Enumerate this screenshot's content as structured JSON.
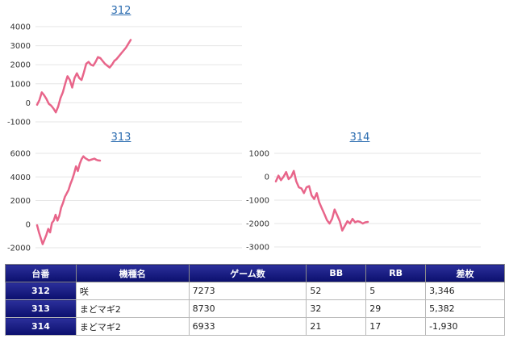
{
  "charts": [
    {
      "title": "312",
      "yticks": [
        "4000",
        "3000",
        "2000",
        "1000",
        "0",
        "-1000"
      ]
    },
    {
      "title": "313",
      "yticks": [
        "6000",
        "4000",
        "2000",
        "0",
        "-2000"
      ]
    },
    {
      "title": "314",
      "yticks": [
        "1000",
        "0",
        "-1000",
        "-2000",
        "-3000"
      ]
    }
  ],
  "chart_data": [
    {
      "type": "line",
      "title": "312",
      "ylim": [
        -1000,
        4000
      ],
      "grid": true,
      "x": [
        0,
        1,
        2,
        3,
        4,
        5,
        6,
        7,
        8,
        9,
        10,
        11,
        12,
        13,
        14,
        15,
        16,
        17,
        18,
        19,
        20,
        21,
        22,
        23,
        24,
        25,
        26,
        27,
        28,
        29,
        30,
        31,
        32,
        33,
        34,
        35,
        36,
        37,
        38,
        39,
        40
      ],
      "values": [
        -100,
        150,
        550,
        400,
        200,
        -50,
        -150,
        -300,
        -500,
        -200,
        250,
        550,
        1000,
        1400,
        1200,
        800,
        1300,
        1550,
        1300,
        1200,
        1600,
        2050,
        2150,
        2000,
        1950,
        2150,
        2400,
        2350,
        2200,
        2050,
        1950,
        1850,
        2000,
        2200,
        2300,
        2450,
        2600,
        2750,
        2900,
        3100,
        3300
      ]
    },
    {
      "type": "line",
      "title": "313",
      "ylim": [
        -2000,
        6000
      ],
      "grid": true,
      "x": [
        0,
        1,
        2,
        3,
        4,
        5,
        6,
        7,
        8,
        9,
        10,
        11,
        12,
        13,
        14,
        15,
        16,
        17,
        18,
        19,
        20,
        21,
        22,
        23,
        24,
        25,
        26,
        27,
        28,
        29,
        30,
        31,
        32,
        33,
        34
      ],
      "values": [
        -100,
        -700,
        -1200,
        -1700,
        -1300,
        -900,
        -400,
        -700,
        100,
        300,
        800,
        300,
        700,
        1400,
        1800,
        2300,
        2600,
        2900,
        3400,
        3800,
        4300,
        4900,
        4500,
        5100,
        5500,
        5750,
        5600,
        5500,
        5400,
        5450,
        5500,
        5550,
        5450,
        5400,
        5382
      ]
    },
    {
      "type": "line",
      "title": "314",
      "ylim": [
        -3000,
        1000
      ],
      "grid": true,
      "x": [
        0,
        1,
        2,
        3,
        4,
        5,
        6,
        7,
        8,
        9,
        10,
        11,
        12,
        13,
        14,
        15,
        16,
        17,
        18,
        19,
        20,
        21,
        22,
        23,
        24,
        25,
        26,
        27,
        28,
        29,
        30,
        31,
        32,
        33,
        34,
        35,
        36
      ],
      "values": [
        -200,
        50,
        -150,
        0,
        200,
        -100,
        0,
        250,
        -200,
        -450,
        -500,
        -700,
        -450,
        -400,
        -800,
        -950,
        -700,
        -1100,
        -1350,
        -1600,
        -1850,
        -2000,
        -1800,
        -1400,
        -1650,
        -1900,
        -2300,
        -2100,
        -1900,
        -2000,
        -1800,
        -1950,
        -1900,
        -1930,
        -2000,
        -1950,
        -1930
      ]
    }
  ],
  "table": {
    "headers": [
      "台番",
      "機種名",
      "ゲーム数",
      "BB",
      "RB",
      "差枚"
    ],
    "rows": [
      {
        "id": "312",
        "model": "咲",
        "games": "7273",
        "bb": "52",
        "rb": "5",
        "diff": "3,346"
      },
      {
        "id": "313",
        "model": "まどマギ2",
        "games": "8730",
        "bb": "32",
        "rb": "29",
        "diff": "5,382"
      },
      {
        "id": "314",
        "model": "まどマギ2",
        "games": "6933",
        "bb": "21",
        "rb": "17",
        "diff": "-1,930"
      }
    ]
  },
  "colors": {
    "line": "#e8658a",
    "header_bg": "#1a1e80",
    "negative": "#e02020"
  }
}
